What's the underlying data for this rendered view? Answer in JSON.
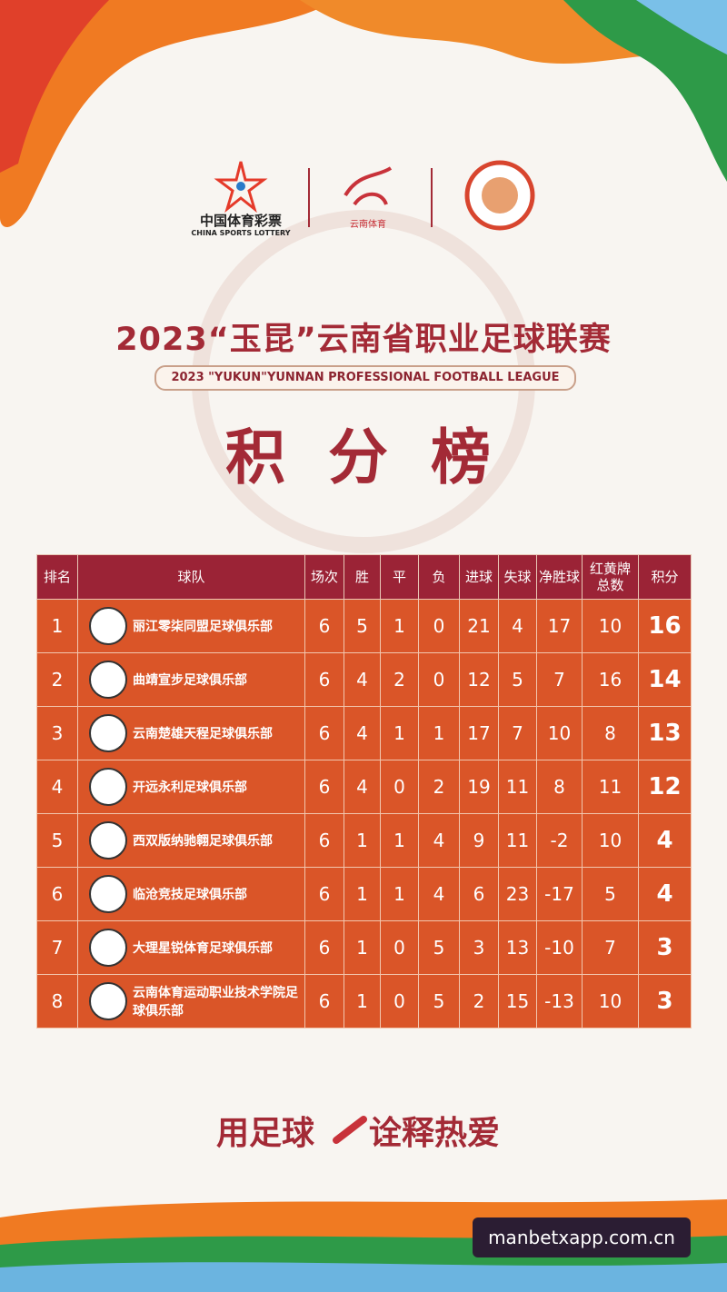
{
  "header": {
    "sponsor_cn": "中国体育彩票",
    "sponsor_en": "CHINA SPORTS LOTTERY",
    "partner": "云南体育"
  },
  "title": "2023“玉昆”云南省职业足球联赛",
  "subtitle": "2023 \"YUKUN\"YUNNAN PROFESSIONAL FOOTBALL LEAGUE",
  "board_title": "积 分 榜",
  "table": {
    "headers": [
      "排名",
      "球队",
      "场次",
      "胜",
      "平",
      "负",
      "进球",
      "失球",
      "净胜球",
      "红黄牌总数",
      "积分"
    ],
    "rows": [
      [
        1,
        "丽江零柒同盟足球俱乐部",
        6,
        5,
        1,
        0,
        21,
        4,
        17,
        10,
        16
      ],
      [
        2,
        "曲靖宣步足球俱乐部",
        6,
        4,
        2,
        0,
        12,
        5,
        7,
        16,
        14
      ],
      [
        3,
        "云南楚雄天程足球俱乐部",
        6,
        4,
        1,
        1,
        17,
        7,
        10,
        8,
        13
      ],
      [
        4,
        "开远永利足球俱乐部",
        6,
        4,
        0,
        2,
        19,
        11,
        8,
        11,
        12
      ],
      [
        5,
        "西双版纳驰翱足球俱乐部",
        6,
        1,
        1,
        4,
        9,
        11,
        -2,
        10,
        4
      ],
      [
        6,
        "临沧竞技足球俱乐部",
        6,
        1,
        1,
        4,
        6,
        23,
        -17,
        5,
        4
      ],
      [
        7,
        "大理星锐体育足球俱乐部",
        6,
        1,
        0,
        5,
        3,
        13,
        -10,
        7,
        3
      ],
      [
        8,
        "云南体育运动职业技术学院足球俱乐部",
        6,
        1,
        0,
        5,
        2,
        15,
        -13,
        10,
        3
      ]
    ]
  },
  "slogan": [
    "用足球",
    "诠释热爱"
  ],
  "watermark": "manbetxapp.com.cn"
}
